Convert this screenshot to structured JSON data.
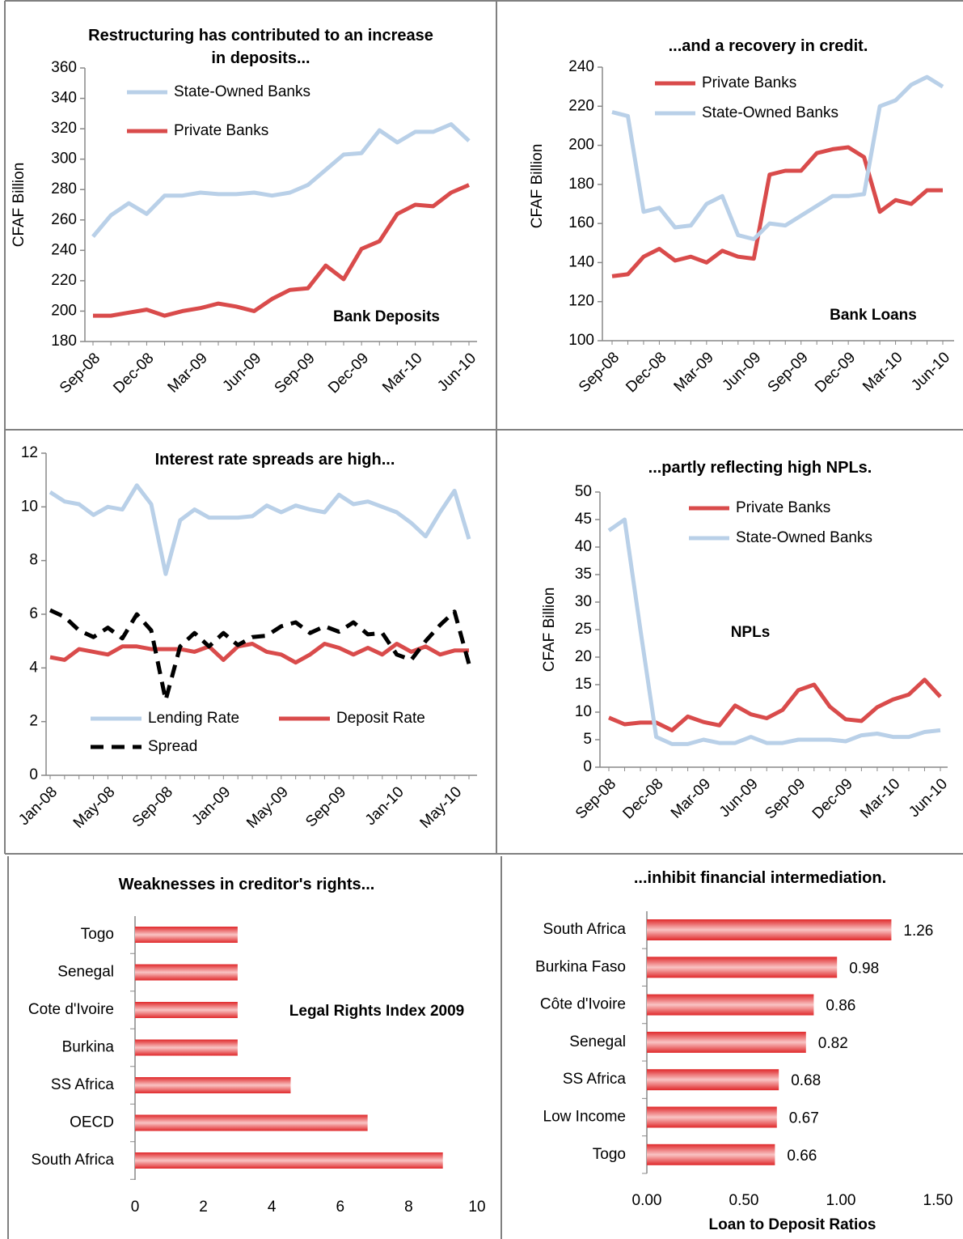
{
  "chart_data": [
    {
      "type": "line",
      "title": "Restructuring has contributed to an increase in deposits...",
      "y_label": "CFAF Billion",
      "annotation": "Bank Deposits",
      "categories": [
        "Sep-08",
        null,
        null,
        "Dec-08",
        null,
        null,
        "Mar-09",
        null,
        null,
        "Jun-09",
        null,
        null,
        "Sep-09",
        null,
        null,
        "Dec-09",
        null,
        null,
        "Mar-10",
        null,
        null,
        "Jun-10"
      ],
      "series": [
        {
          "name": "State-Owned Banks",
          "color": "#b9d0e8",
          "values": [
            249,
            263,
            271,
            264,
            276,
            276,
            278,
            277,
            277,
            278,
            276,
            278,
            283,
            293,
            303,
            304,
            319,
            311,
            318,
            318,
            323,
            312
          ]
        },
        {
          "name": "Private Banks",
          "color": "#d94b4b",
          "values": [
            197,
            197,
            199,
            201,
            197,
            200,
            202,
            205,
            203,
            200,
            208,
            214,
            215,
            230,
            221,
            241,
            246,
            264,
            270,
            269,
            278,
            283
          ]
        }
      ],
      "ylim": [
        180,
        360
      ],
      "yticks": [
        180,
        200,
        220,
        240,
        260,
        280,
        300,
        320,
        340,
        360
      ]
    },
    {
      "type": "line",
      "title": "...and a recovery in credit.",
      "y_label": "CFAF Billion",
      "annotation": "Bank Loans",
      "categories": [
        "Sep-08",
        null,
        null,
        "Dec-08",
        null,
        null,
        "Mar-09",
        null,
        null,
        "Jun-09",
        null,
        null,
        "Sep-09",
        null,
        null,
        "Dec-09",
        null,
        null,
        "Mar-10",
        null,
        null,
        "Jun-10"
      ],
      "series": [
        {
          "name": "Private Banks",
          "color": "#d94b4b",
          "values": [
            133,
            134,
            143,
            147,
            141,
            143,
            140,
            146,
            143,
            142,
            185,
            187,
            187,
            196,
            198,
            199,
            194,
            166,
            172,
            170,
            177,
            177
          ]
        },
        {
          "name": "State-Owned Banks",
          "color": "#b9d0e8",
          "values": [
            217,
            215,
            166,
            168,
            158,
            159,
            170,
            174,
            154,
            152,
            160,
            159,
            164,
            169,
            174,
            174,
            175,
            220,
            223,
            231,
            235,
            230
          ]
        }
      ],
      "ylim": [
        100,
        240
      ],
      "yticks": [
        100,
        120,
        140,
        160,
        180,
        200,
        220,
        240
      ]
    },
    {
      "type": "line",
      "title": "Interest rate spreads are high...",
      "categories": [
        "Jan-08",
        null,
        null,
        null,
        "May-08",
        null,
        null,
        null,
        "Sep-08",
        null,
        null,
        null,
        "Jan-09",
        null,
        null,
        null,
        "May-09",
        null,
        null,
        null,
        "Sep-09",
        null,
        null,
        null,
        "Jan-10",
        null,
        null,
        null,
        "May-10",
        null
      ],
      "series": [
        {
          "name": "Lending Rate",
          "color": "#b9d0e8",
          "values": [
            10.55,
            10.2,
            10.1,
            9.7,
            10.0,
            9.9,
            10.8,
            10.1,
            7.5,
            9.5,
            9.9,
            9.6,
            9.6,
            9.6,
            9.65,
            10.05,
            9.8,
            10.05,
            9.9,
            9.8,
            10.45,
            10.1,
            10.2,
            10.0,
            9.8,
            9.4,
            8.9,
            9.8,
            10.6,
            8.8
          ]
        },
        {
          "name": "Deposit Rate",
          "color": "#d94b4b",
          "values": [
            4.4,
            4.3,
            4.7,
            4.6,
            4.5,
            4.8,
            4.8,
            4.7,
            4.7,
            4.7,
            4.6,
            4.8,
            4.3,
            4.8,
            4.9,
            4.6,
            4.5,
            4.2,
            4.5,
            4.9,
            4.75,
            4.5,
            4.75,
            4.5,
            4.9,
            4.6,
            4.8,
            4.5,
            4.65,
            4.65
          ]
        },
        {
          "name": "Spread",
          "color": "#000000",
          "dashed": true,
          "values": [
            6.15,
            5.9,
            5.4,
            5.15,
            5.5,
            5.1,
            6.0,
            5.4,
            2.8,
            4.8,
            5.3,
            4.8,
            5.3,
            4.85,
            5.15,
            5.2,
            5.55,
            5.7,
            5.3,
            5.55,
            5.35,
            5.7,
            5.25,
            5.3,
            4.5,
            4.3,
            5.0,
            5.6,
            6.1,
            4.15
          ]
        }
      ],
      "ylim": [
        0,
        12
      ],
      "yticks": [
        0,
        2,
        4,
        6,
        8,
        10,
        12
      ]
    },
    {
      "type": "line",
      "title": "...partly reflecting high NPLs.",
      "y_label": "CFAF Billion",
      "annotation": "NPLs",
      "categories": [
        "Sep-08",
        null,
        null,
        "Dec-08",
        null,
        null,
        "Mar-09",
        null,
        null,
        "Jun-09",
        null,
        null,
        "Sep-09",
        null,
        null,
        "Dec-09",
        null,
        null,
        "Mar-10",
        null,
        null,
        "Jun-10"
      ],
      "series": [
        {
          "name": "Private Banks",
          "color": "#d94b4b",
          "values": [
            9,
            7.8,
            8.1,
            8.1,
            6.7,
            9.2,
            8.2,
            7.6,
            11.2,
            9.6,
            8.9,
            10.4,
            14,
            15,
            11,
            8.7,
            8.4,
            10.9,
            12.3,
            13.2,
            15.9,
            12.8
          ]
        },
        {
          "name": "State-Owned Banks",
          "color": "#b9d0e8",
          "values": [
            43,
            45,
            25,
            5.5,
            4.2,
            4.2,
            5.0,
            4.4,
            4.4,
            5.5,
            4.4,
            4.4,
            5.0,
            5.0,
            5.0,
            4.7,
            5.8,
            6.1,
            5.5,
            5.5,
            6.4,
            6.7
          ]
        }
      ],
      "ylim": [
        0,
        50
      ],
      "yticks": [
        0,
        5,
        10,
        15,
        20,
        25,
        30,
        35,
        40,
        45,
        50
      ]
    },
    {
      "type": "hbar",
      "title": "Weaknesses in creditor's rights...",
      "annotation": "Legal Rights Index 2009",
      "categories": [
        "Togo",
        "Senegal",
        "Cote d'Ivoire",
        "Burkina",
        "SS Africa",
        "OECD",
        "South Africa"
      ],
      "values": [
        3,
        3,
        3,
        3,
        4.55,
        6.8,
        9
      ],
      "color": "#e0292b",
      "xlim": [
        0,
        10
      ],
      "xticks": [
        0,
        2,
        4,
        6,
        8,
        10
      ]
    },
    {
      "type": "hbar",
      "title": "...inhibit financial intermediation.",
      "x_label": "Loan to Deposit Ratios",
      "categories": [
        "South Africa",
        "Burkina Faso",
        "Côte d'Ivoire",
        "Senegal",
        "SS Africa",
        "Low Income",
        "Togo"
      ],
      "values": [
        1.26,
        0.98,
        0.86,
        0.82,
        0.68,
        0.67,
        0.66
      ],
      "color": "#e0292b",
      "data_labels": true,
      "xlim": [
        0,
        1.5
      ],
      "xticks": [
        {
          "value": 0,
          "label": "0.00"
        },
        {
          "value": 0.5,
          "label": "0.50"
        },
        {
          "value": 1,
          "label": "1.00"
        },
        {
          "value": 1.5,
          "label": "1.50"
        }
      ]
    }
  ]
}
